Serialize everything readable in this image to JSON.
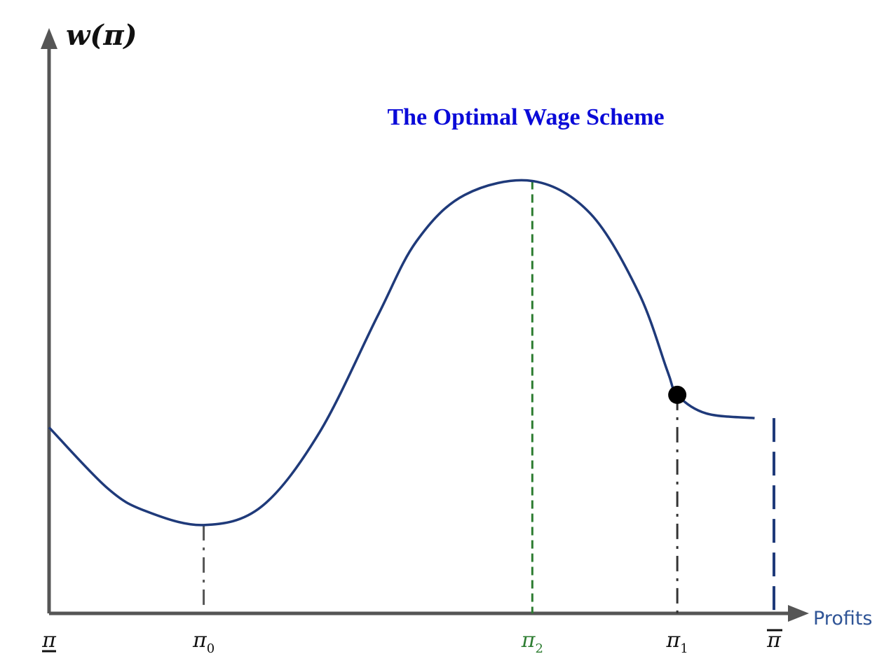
{
  "chart_data": {
    "type": "line",
    "title": "The Optimal Wage Scheme",
    "ylabel": "w(π)",
    "xlabel": "Profits",
    "grid": false,
    "x_ticks": [
      {
        "label": "π",
        "sub": "",
        "mark": "underline",
        "color": "#111111",
        "x": 0
      },
      {
        "label": "π",
        "sub": "0",
        "mark": "",
        "color": "#111111",
        "x": 1.6
      },
      {
        "label": "π",
        "sub": "2",
        "mark": "",
        "color": "#2e7d32",
        "x": 5
      },
      {
        "label": "π",
        "sub": "1",
        "mark": "",
        "color": "#111111",
        "x": 6.5
      },
      {
        "label": "π",
        "sub": "",
        "mark": "overline",
        "color": "#111111",
        "x": 7.5
      }
    ],
    "xlim": [
      0,
      7.5
    ],
    "ylim": [
      0,
      10
    ],
    "series": [
      {
        "color": "#1f3a7a",
        "points": [
          [
            0.0,
            4.0
          ],
          [
            0.6,
            2.7
          ],
          [
            1.0,
            2.2
          ],
          [
            1.6,
            1.9
          ],
          [
            2.2,
            2.3
          ],
          [
            2.8,
            3.9
          ],
          [
            3.4,
            6.4
          ],
          [
            3.8,
            8.0
          ],
          [
            4.3,
            9.0
          ],
          [
            5.0,
            9.3
          ],
          [
            5.6,
            8.6
          ],
          [
            6.1,
            6.9
          ],
          [
            6.4,
            5.2
          ],
          [
            6.5,
            4.7
          ],
          [
            6.8,
            4.3
          ],
          [
            7.3,
            4.2
          ]
        ]
      }
    ],
    "annotations": {
      "marked_point": {
        "x": 6.5,
        "y": 4.7
      },
      "drop_lines": [
        {
          "x": 1.6,
          "y": 1.9,
          "style": "dash-dot",
          "color": "#555555"
        },
        {
          "x": 5.0,
          "y": 9.3,
          "style": "dashed",
          "color": "#2e7d32"
        },
        {
          "x": 6.5,
          "y": 4.7,
          "style": "dash-dot",
          "color": "#333333"
        },
        {
          "x": 7.5,
          "y": 4.2,
          "style": "long-dash",
          "color": "#1f3a7a"
        }
      ]
    },
    "axis_color": "#555555"
  }
}
